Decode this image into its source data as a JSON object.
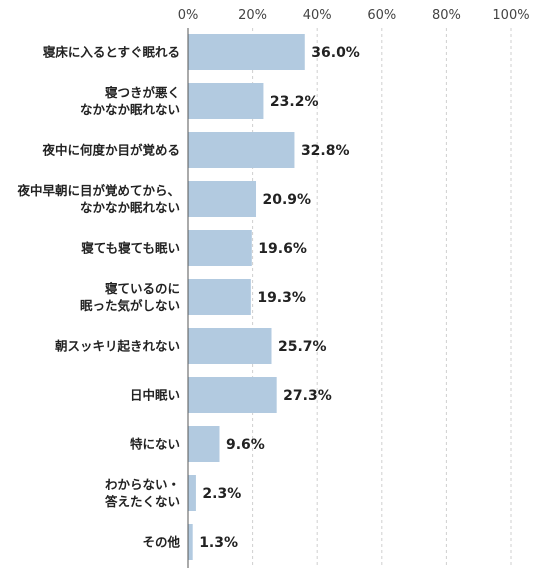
{
  "chart_data": {
    "type": "bar",
    "orientation": "horizontal",
    "title": "",
    "xlabel": "",
    "ylabel": "",
    "xlim": [
      0,
      100
    ],
    "xticks": [
      "0%",
      "20%",
      "40%",
      "60%",
      "80%",
      "100%"
    ],
    "xtick_values": [
      0,
      20,
      40,
      60,
      80,
      100
    ],
    "grid": true,
    "legend": "none",
    "bar_color": "#b2cae0",
    "categories": [
      [
        "寝床に入るとすぐ眠れる"
      ],
      [
        "寝つきが悪く",
        "なかなか眠れない"
      ],
      [
        "夜中に何度か目が覚める"
      ],
      [
        "夜中早朝に目が覚めてから、",
        "なかなか眠れない"
      ],
      [
        "寝ても寝ても眠い"
      ],
      [
        "寝ているのに",
        "眠った気がしない"
      ],
      [
        "朝スッキリ起きれない"
      ],
      [
        "日中眠い"
      ],
      [
        "特にない"
      ],
      [
        "わからない・",
        "答えたくない"
      ],
      [
        "その他"
      ]
    ],
    "values": [
      36.0,
      23.2,
      32.8,
      20.9,
      19.6,
      19.3,
      25.7,
      27.3,
      9.6,
      2.3,
      1.3
    ],
    "value_labels": [
      "36.0%",
      "23.2%",
      "32.8%",
      "20.9%",
      "19.6%",
      "19.3%",
      "25.7%",
      "27.3%",
      "9.6%",
      "2.3%",
      "1.3%"
    ]
  }
}
